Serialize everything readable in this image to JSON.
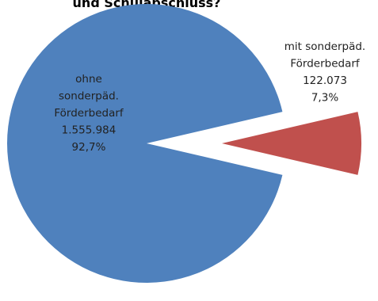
{
  "chart_data": {
    "type": "pie",
    "title": "und Schulabschluss?",
    "categories": [
      "ohne sonderpäd. Förderbedarf",
      "mit sonderpäd. Förderbedarf"
    ],
    "values": [
      1555984,
      122073
    ],
    "percent": [
      92.7,
      7.3
    ],
    "colors": [
      "#4f81bd",
      "#c0504d"
    ],
    "data_labels": [
      {
        "lines": [
          "ohne",
          "sonderpäd.",
          "Förderbedarf",
          "1.555.984",
          "92,7%"
        ]
      },
      {
        "lines": [
          "mit sonderpäd.",
          "Förderbedarf",
          "122.073",
          "7,3%"
        ]
      }
    ],
    "exploded_slice": "mit sonderpäd. Förderbedarf",
    "legend": "none"
  }
}
